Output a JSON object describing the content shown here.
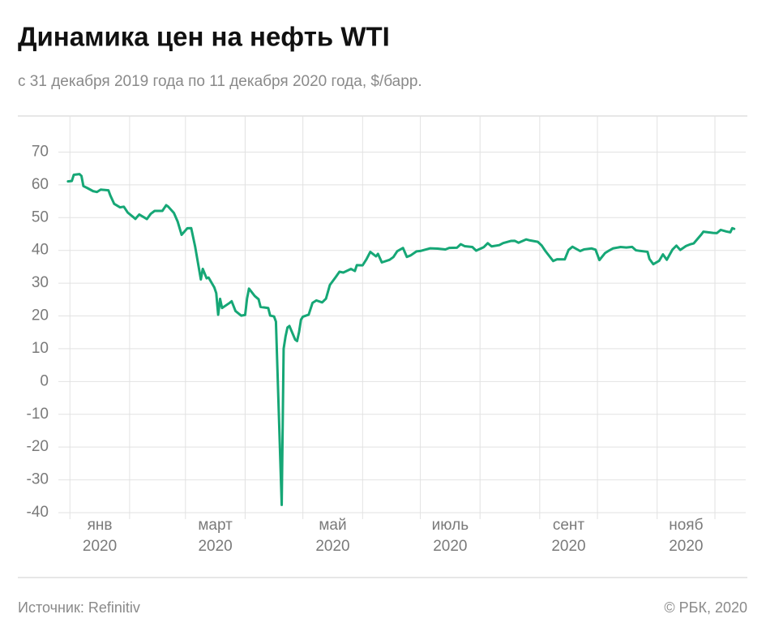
{
  "chart_data": {
    "type": "line",
    "title": "Динамика цен на нефть WTI",
    "subtitle": "с 31 декабря 2019 года по 11 декабря 2020 года, $/барр.",
    "source": "Источник: Refinitiv",
    "copyright": "© РБК, 2020",
    "color": "#16a776",
    "grid": true,
    "ylim": [
      -40,
      81
    ],
    "yticks": [
      -40,
      -30,
      -20,
      -10,
      0,
      10,
      20,
      30,
      40,
      50,
      60,
      70
    ],
    "xlim": [
      "2019-12-26",
      "2020-12-17"
    ],
    "xticks": [
      {
        "value": "2020-01",
        "label": "янв",
        "year": "2020"
      },
      "2020-02",
      {
        "value": "2020-03",
        "label": "март",
        "year": "2020"
      },
      "2020-04",
      {
        "value": "2020-05",
        "label": "май",
        "year": "2020"
      },
      "2020-06",
      {
        "value": "2020-07",
        "label": "июль",
        "year": "2020"
      },
      "2020-08",
      {
        "value": "2020-09",
        "label": "сент",
        "year": "2020"
      },
      "2020-10",
      {
        "value": "2020-11",
        "label": "нояб",
        "year": "2020"
      },
      "2020-12"
    ],
    "x": [
      "2019-12-31",
      "2020-01-02",
      "2020-01-03",
      "2020-01-06",
      "2020-01-07",
      "2020-01-08",
      "2020-01-10",
      "2020-01-13",
      "2020-01-15",
      "2020-01-17",
      "2020-01-21",
      "2020-01-22",
      "2020-01-24",
      "2020-01-27",
      "2020-01-29",
      "2020-01-31",
      "2020-02-03",
      "2020-02-04",
      "2020-02-06",
      "2020-02-10",
      "2020-02-12",
      "2020-02-14",
      "2020-02-18",
      "2020-02-20",
      "2020-02-21",
      "2020-02-24",
      "2020-02-26",
      "2020-02-28",
      "2020-03-02",
      "2020-03-04",
      "2020-03-06",
      "2020-03-09",
      "2020-03-10",
      "2020-03-12",
      "2020-03-13",
      "2020-03-16",
      "2020-03-17",
      "2020-03-18",
      "2020-03-19",
      "2020-03-20",
      "2020-03-24",
      "2020-03-25",
      "2020-03-27",
      "2020-03-30",
      "2020-04-01",
      "2020-04-02",
      "2020-04-03",
      "2020-04-06",
      "2020-04-08",
      "2020-04-09",
      "2020-04-13",
      "2020-04-14",
      "2020-04-16",
      "2020-04-17",
      "2020-04-20",
      "2020-04-21",
      "2020-04-22",
      "2020-04-23",
      "2020-04-24",
      "2020-04-27",
      "2020-04-28",
      "2020-04-29",
      "2020-04-30",
      "2020-05-01",
      "2020-05-04",
      "2020-05-06",
      "2020-05-08",
      "2020-05-11",
      "2020-05-13",
      "2020-05-15",
      "2020-05-18",
      "2020-05-20",
      "2020-05-22",
      "2020-05-26",
      "2020-05-28",
      "2020-05-29",
      "2020-06-01",
      "2020-06-03",
      "2020-06-05",
      "2020-06-08",
      "2020-06-09",
      "2020-06-11",
      "2020-06-15",
      "2020-06-17",
      "2020-06-19",
      "2020-06-22",
      "2020-06-24",
      "2020-06-26",
      "2020-06-29",
      "2020-07-01",
      "2020-07-06",
      "2020-07-10",
      "2020-07-14",
      "2020-07-16",
      "2020-07-20",
      "2020-07-22",
      "2020-07-24",
      "2020-07-28",
      "2020-07-30",
      "2020-08-03",
      "2020-08-05",
      "2020-08-07",
      "2020-08-11",
      "2020-08-13",
      "2020-08-17",
      "2020-08-19",
      "2020-08-21",
      "2020-08-25",
      "2020-08-27",
      "2020-08-31",
      "2020-09-02",
      "2020-09-04",
      "2020-09-08",
      "2020-09-10",
      "2020-09-14",
      "2020-09-16",
      "2020-09-18",
      "2020-09-22",
      "2020-09-24",
      "2020-09-28",
      "2020-09-30",
      "2020-10-02",
      "2020-10-05",
      "2020-10-07",
      "2020-10-09",
      "2020-10-13",
      "2020-10-16",
      "2020-10-19",
      "2020-10-21",
      "2020-10-23",
      "2020-10-27",
      "2020-10-28",
      "2020-10-30",
      "2020-11-02",
      "2020-11-04",
      "2020-11-06",
      "2020-11-09",
      "2020-11-11",
      "2020-11-13",
      "2020-11-16",
      "2020-11-18",
      "2020-11-20",
      "2020-11-24",
      "2020-11-25",
      "2020-11-30",
      "2020-12-02",
      "2020-12-04",
      "2020-12-07",
      "2020-12-09",
      "2020-12-10",
      "2020-12-11"
    ],
    "values": [
      61.06,
      61.18,
      63.05,
      63.27,
      62.7,
      59.61,
      59.04,
      58.08,
      57.81,
      58.54,
      58.34,
      56.74,
      54.19,
      53.14,
      53.33,
      51.56,
      50.11,
      49.61,
      50.95,
      49.57,
      51.17,
      52.05,
      52.05,
      53.78,
      53.38,
      51.43,
      48.73,
      44.76,
      46.75,
      46.78,
      41.28,
      31.13,
      34.36,
      31.5,
      31.73,
      28.7,
      26.95,
      20.37,
      25.22,
      22.43,
      24.01,
      24.49,
      21.51,
      20.09,
      20.31,
      25.32,
      28.34,
      26.08,
      25.09,
      22.76,
      22.41,
      20.11,
      19.87,
      18.27,
      -37.63,
      10.01,
      13.78,
      16.5,
      16.94,
      12.78,
      12.34,
      15.06,
      18.84,
      19.78,
      20.39,
      23.99,
      24.74,
      24.14,
      25.29,
      29.43,
      31.82,
      33.49,
      33.25,
      34.35,
      33.71,
      35.49,
      35.44,
      37.29,
      39.55,
      38.19,
      38.94,
      36.34,
      37.12,
      37.96,
      39.75,
      40.73,
      38.01,
      38.49,
      39.7,
      39.82,
      40.63,
      40.55,
      40.29,
      40.75,
      40.81,
      41.9,
      41.29,
      41.04,
      39.92,
      41.01,
      42.19,
      41.22,
      41.61,
      42.24,
      42.89,
      42.93,
      42.34,
      43.35,
      43.04,
      42.61,
      41.51,
      39.77,
      36.76,
      37.3,
      37.26,
      40.16,
      41.11,
      39.8,
      40.31,
      40.6,
      40.22,
      37.05,
      39.22,
      39.95,
      40.6,
      41.04,
      40.88,
      41.06,
      40.03,
      39.85,
      39.57,
      37.39,
      35.79,
      36.81,
      38.79,
      37.14,
      40.29,
      41.45,
      40.13,
      41.34,
      41.82,
      42.15,
      44.91,
      45.71,
      45.34,
      45.28,
      46.26,
      45.76,
      45.52,
      46.78,
      46.57
    ]
  }
}
